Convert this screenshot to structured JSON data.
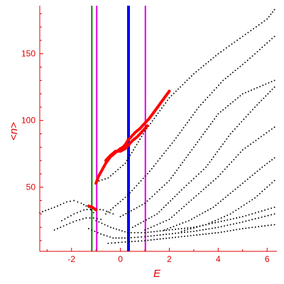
{
  "chart_data": {
    "type": "scatter",
    "title": "",
    "xlabel": "E",
    "ylabel": "<n>",
    "xlim": [
      -3.3,
      6.4
    ],
    "ylim": [
      2,
      186
    ],
    "grid": false,
    "x_ticks": [
      -2,
      0,
      2,
      4,
      6
    ],
    "x_tick_labels": [
      "-2",
      "0",
      "2",
      "4",
      "6"
    ],
    "y_ticks": [
      50,
      100,
      150
    ],
    "y_tick_labels": [
      "50",
      "100",
      "150"
    ],
    "colors": {
      "axes": "#e00000",
      "eigenvalues": "#000000",
      "highlight": "#ff0000",
      "vline_green": "#008000",
      "vline_magenta": "#e000e0",
      "vline_blue": "#0000ff"
    },
    "vertical_lines": [
      {
        "x": -1.17,
        "color": "#008000",
        "width": "thin"
      },
      {
        "x": -0.97,
        "color": "#e000e0",
        "width": "thin"
      },
      {
        "x": 0.33,
        "color": "#0000ff",
        "width": "thick"
      },
      {
        "x": 1.02,
        "color": "#e000e0",
        "width": "thin"
      }
    ],
    "series": [
      {
        "color": "#000000",
        "marker": "dot",
        "branches": [
          {
            "x": [
              -3.3,
              -2.7,
              -2.2,
              -1.9,
              -1.6,
              -1.3,
              -1.1
            ],
            "y": [
              31,
              35,
              39,
              40,
              38,
              35,
              31
            ]
          },
          {
            "x": [
              -2.7,
              -2.2,
              -1.8,
              -1.4,
              -1.1,
              -0.8
            ],
            "y": [
              18,
              22,
              25,
              27,
              27,
              26
            ]
          },
          {
            "x": [
              -2.4,
              -1.9,
              -1.5,
              -1.1,
              -0.7,
              -0.3
            ],
            "y": [
              25,
              30,
              33,
              34,
              33,
              30
            ]
          },
          {
            "x": [
              -1.0,
              -0.5,
              0.2,
              1.0,
              2.0,
              3.0,
              4.0,
              5.0,
              6.0,
              6.3
            ],
            "y": [
              54,
              57,
              68,
              92,
              117,
              135,
              150,
              163,
              176,
              183
            ]
          },
          {
            "x": [
              -0.6,
              0.3,
              1.2,
              2.2,
              3.2,
              4.2,
              5.2,
              6.3
            ],
            "y": [
              30,
              44,
              62,
              85,
              110,
              130,
              145,
              163
            ]
          },
          {
            "x": [
              0.0,
              1.0,
              2.0,
              3.0,
              4.0,
              5.0,
              6.3
            ],
            "y": [
              28,
              38,
              55,
              80,
              105,
              120,
              130
            ]
          },
          {
            "x": [
              0.5,
              1.5,
              2.5,
              3.5,
              4.5,
              5.5,
              6.3
            ],
            "y": [
              20,
              30,
              48,
              65,
              90,
              110,
              125
            ]
          },
          {
            "x": [
              1.0,
              2.0,
              3.0,
              4.0,
              5.0,
              6.3
            ],
            "y": [
              18,
              26,
              42,
              58,
              78,
              95
            ]
          },
          {
            "x": [
              1.8,
              2.8,
              3.8,
              4.8,
              5.8,
              6.3
            ],
            "y": [
              18,
              25,
              35,
              50,
              65,
              72
            ]
          },
          {
            "x": [
              2.5,
              3.5,
              4.5,
              5.5,
              6.3
            ],
            "y": [
              17,
              22,
              30,
              42,
              55
            ]
          },
          {
            "x": [
              -1.3,
              -0.8,
              -0.3,
              0.3,
              1.0,
              2.0,
              3.0,
              4.0,
              5.0,
              6.3
            ],
            "y": [
              19,
              15,
              12,
              12,
              13,
              15,
              17,
              20,
              24,
              30
            ]
          },
          {
            "x": [
              -1.0,
              -0.4,
              0.3,
              1.0,
              2.0,
              3.0,
              4.0,
              5.0,
              6.3
            ],
            "y": [
              25,
              20,
              16,
              16,
              18,
              20,
              24,
              28,
              35
            ]
          },
          {
            "x": [
              -0.5,
              0.2,
              1.0,
              2.0,
              3.0,
              4.0,
              5.0,
              6.3
            ],
            "y": [
              8,
              9,
              10,
              12,
              14,
              16,
              19,
              22
            ]
          }
        ]
      },
      {
        "color": "#ff0000",
        "marker": "dot",
        "branches": [
          {
            "x": [
              -1.3,
              -1.15,
              -1.0
            ],
            "y": [
              36,
              35,
              33
            ]
          },
          {
            "x": [
              -1.0,
              -0.9,
              -0.75,
              -0.6,
              -0.4,
              -0.2,
              0.0,
              0.1,
              0.2,
              0.3,
              0.45,
              0.6,
              0.8,
              1.0,
              1.2,
              1.6,
              2.0
            ],
            "y": [
              53,
              58,
              63,
              68,
              73,
              76,
              79,
              80,
              82,
              85,
              88,
              91,
              94,
              98,
              102,
              112,
              122
            ]
          },
          {
            "x": [
              -0.6,
              -0.4,
              -0.2,
              0.0,
              0.2,
              0.35,
              0.5,
              0.7,
              0.9,
              1.1
            ],
            "y": [
              70,
              74,
              77,
              77,
              79,
              82,
              85,
              88,
              92,
              96
            ]
          }
        ]
      }
    ]
  }
}
